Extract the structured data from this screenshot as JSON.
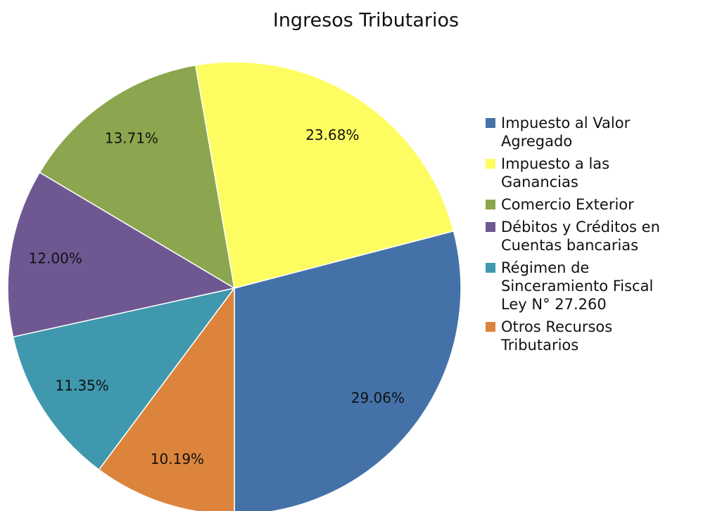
{
  "chart_data": {
    "type": "pie",
    "title": "Ingresos Tributarios",
    "categories": [
      "Impuesto al Valor Agregado",
      "Impuesto a las Ganancias",
      "Comercio Exterior",
      "Débitos y Créditos en Cuentas bancarias",
      "Régimen de Sinceramiento Fiscal Ley N° 27.260",
      "Otros Recursos Tributarios"
    ],
    "values": [
      29.06,
      23.68,
      13.71,
      12.0,
      11.35,
      10.19
    ],
    "value_labels": [
      "29.06%",
      "23.68%",
      "13.71%",
      "12.00%",
      "11.35%",
      "10.19%"
    ],
    "colors": [
      "#4472a8",
      "#fdfd62",
      "#8ba64e",
      "#6f5892",
      "#3f98ae",
      "#dc843c"
    ],
    "legend": "right"
  }
}
